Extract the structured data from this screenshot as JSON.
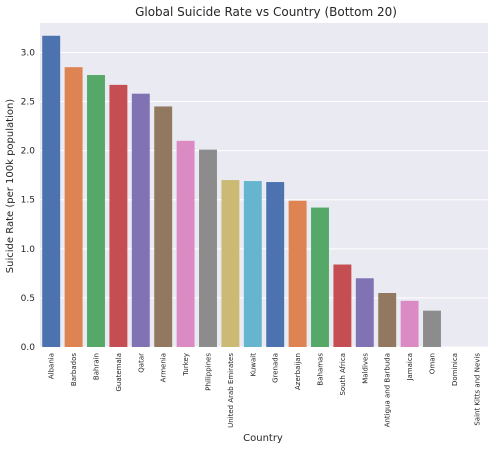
{
  "chart_data": {
    "type": "bar",
    "title": "Global Suicide Rate vs Country (Bottom 20)",
    "xlabel": "Country",
    "ylabel": "Suicide Rate (per 100k population)",
    "ylim": [
      0,
      3.3
    ],
    "yticks": [
      "0.0",
      "0.5",
      "1.0",
      "1.5",
      "2.0",
      "2.5",
      "3.0"
    ],
    "grid": true,
    "categories": [
      "Albania",
      "Barbados",
      "Bahrain",
      "Guatemala",
      "Qatar",
      "Armenia",
      "Turkey",
      "Philippines",
      "United Arab Emirates",
      "Kuwait",
      "Grenada",
      "Azerbaijan",
      "Bahamas",
      "South Africa",
      "Maldives",
      "Antigua and Barbuda",
      "Jamaica",
      "Oman",
      "Dominica",
      "Saint Kitts and Nevis"
    ],
    "values": [
      3.17,
      2.85,
      2.77,
      2.67,
      2.58,
      2.45,
      2.1,
      2.01,
      1.7,
      1.69,
      1.68,
      1.49,
      1.42,
      0.84,
      0.7,
      0.55,
      0.47,
      0.37,
      0.0,
      0.0
    ],
    "colors": [
      "#4c72b0",
      "#dd8452",
      "#55a868",
      "#c44e52",
      "#8172b3",
      "#937860",
      "#da8bc3",
      "#8c8c8c",
      "#ccb974",
      "#64b5cd"
    ],
    "plot_bg": "#eaeaf2",
    "grid_color": "#ffffff"
  }
}
